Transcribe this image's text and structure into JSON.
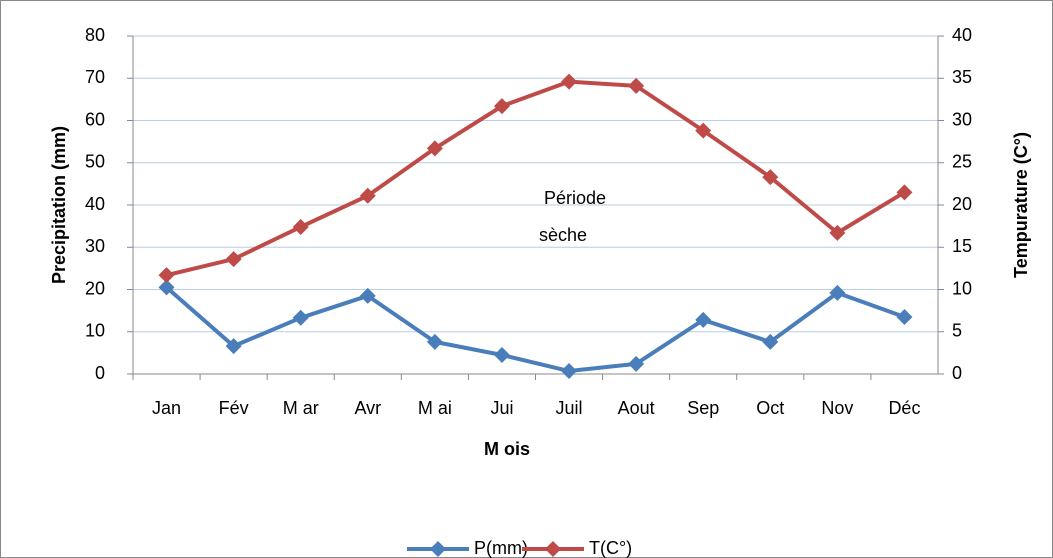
{
  "chart_data": {
    "type": "line",
    "categories": [
      "Jan",
      "Fév",
      "M ar",
      "Avr",
      "M ai",
      "Jui",
      "Juil",
      "Aout",
      "Sep",
      "Oct",
      "Nov",
      "Déc"
    ],
    "series": [
      {
        "name": "P(mm)",
        "color": "#4a7ebb",
        "values": [
          20.5,
          6.6,
          13.3,
          18.5,
          7.6,
          4.5,
          0.7,
          2.4,
          12.8,
          7.6,
          19.2,
          13.5
        ]
      },
      {
        "name": "T(C°)",
        "color": "#be4b48",
        "axis": "y2",
        "values": [
          11.7,
          13.6,
          17.4,
          21.1,
          26.7,
          31.7,
          34.6,
          34.1,
          28.8,
          23.3,
          16.7,
          21.5
        ]
      }
    ],
    "ylim": [
      0,
      80
    ],
    "yticks": [
      0,
      10,
      20,
      30,
      40,
      50,
      60,
      70,
      80
    ],
    "y2lim": [
      0,
      40
    ],
    "y2ticks": [
      0,
      5,
      10,
      15,
      20,
      25,
      30,
      35,
      40
    ],
    "ylabel": "Precipitation (mm)",
    "y2label": "Tempurature (C°)",
    "xlabel": "M ois",
    "annotation": [
      "Période",
      "sèche"
    ],
    "grid": true,
    "legend": "bottom"
  }
}
